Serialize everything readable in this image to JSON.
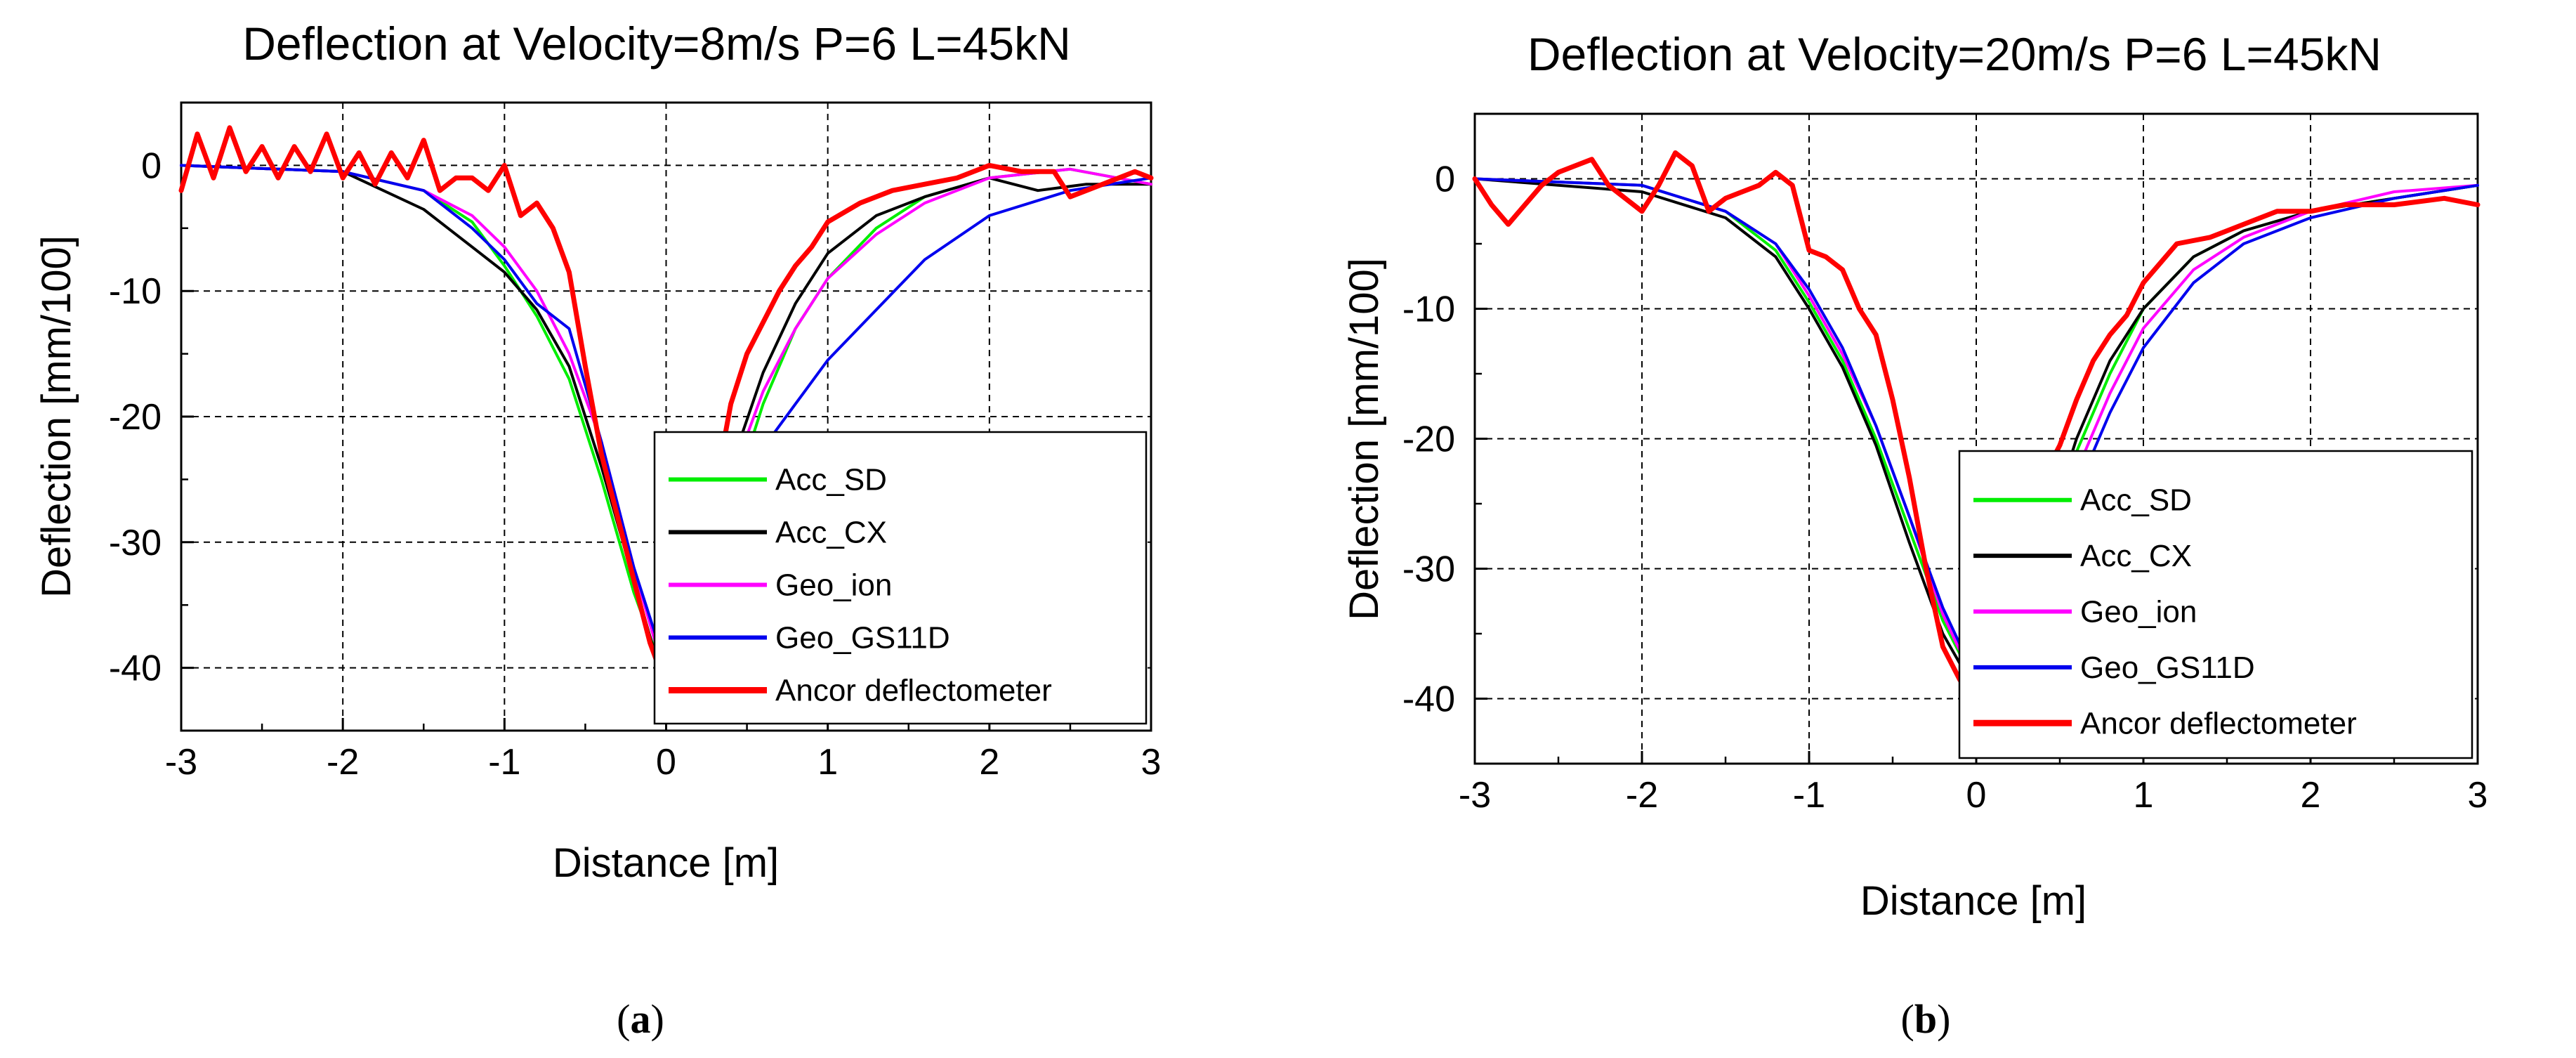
{
  "panels": [
    {
      "label_open": "(",
      "label_letter": "a",
      "label_close": ")"
    },
    {
      "label_open": "(",
      "label_letter": "b",
      "label_close": ")"
    }
  ],
  "chart_data": [
    {
      "type": "line",
      "title": "Deflection at Velocity=8m/s P=6 L=45kN",
      "xlabel": "Distance [m]",
      "ylabel": "Deflection [mm/100]",
      "xlim": [
        -3,
        3
      ],
      "ylim": [
        -45,
        5
      ],
      "xticks": [
        -3,
        -2,
        -1,
        0,
        1,
        2,
        3
      ],
      "yticks": [
        0,
        -10,
        -20,
        -30,
        -40
      ],
      "grid": true,
      "legend_position": "lower-right",
      "series": [
        {
          "name": "Acc_SD",
          "color": "#00ee00",
          "x": [
            -3,
            -2,
            -1.5,
            -1.2,
            -1,
            -0.8,
            -0.6,
            -0.4,
            -0.2,
            0,
            0.2,
            0.4,
            0.6,
            0.8,
            1,
            1.3,
            1.6,
            2,
            2.5,
            3
          ],
          "y": [
            0,
            -0.5,
            -2,
            -4.5,
            -8,
            -12,
            -17,
            -25,
            -34,
            -41,
            -36,
            -27,
            -19,
            -13,
            -9,
            -5,
            -2.5,
            -1,
            -0.3,
            -1.5
          ]
        },
        {
          "name": "Acc_CX",
          "color": "#000000",
          "x": [
            -3,
            -2,
            -1.5,
            -1.2,
            -1,
            -0.8,
            -0.6,
            -0.4,
            -0.2,
            0,
            0.2,
            0.4,
            0.6,
            0.8,
            1,
            1.3,
            1.6,
            2,
            2.3,
            2.6,
            3
          ],
          "y": [
            0,
            -0.5,
            -3.5,
            -6.5,
            -8.5,
            -11.5,
            -16,
            -24,
            -33,
            -42,
            -35,
            -24,
            -16.5,
            -11,
            -7,
            -4,
            -2.5,
            -1,
            -2,
            -1.5,
            -1.5
          ]
        },
        {
          "name": "Geo_ion",
          "color": "#ff00ff",
          "x": [
            -3,
            -2,
            -1.5,
            -1.2,
            -1,
            -0.8,
            -0.6,
            -0.4,
            -0.2,
            0,
            0.2,
            0.4,
            0.6,
            0.8,
            1,
            1.3,
            1.6,
            2,
            2.5,
            3
          ],
          "y": [
            0,
            -0.5,
            -2,
            -4,
            -6.5,
            -10,
            -15,
            -22,
            -32,
            -41,
            -34,
            -25,
            -18,
            -13,
            -9,
            -5.5,
            -3,
            -1,
            -0.3,
            -1.5
          ]
        },
        {
          "name": "Geo_GS11D",
          "color": "#0000ee",
          "x": [
            -3,
            -2,
            -1.5,
            -1.2,
            -1,
            -0.8,
            -0.6,
            -0.4,
            -0.2,
            0,
            0.2,
            0.4,
            0.6,
            0.8,
            1,
            1.3,
            1.6,
            2,
            2.5,
            3
          ],
          "y": [
            0,
            -0.5,
            -2,
            -5,
            -7.5,
            -11,
            -13,
            -22,
            -32,
            -40,
            -36,
            -28,
            -22.5,
            -19,
            -15.5,
            -11.5,
            -7.5,
            -4,
            -2,
            -1
          ]
        },
        {
          "name": "Ancor deflectometer",
          "color": "#ff0000",
          "x": [
            -3,
            -2.9,
            -2.8,
            -2.7,
            -2.6,
            -2.5,
            -2.4,
            -2.3,
            -2.2,
            -2.1,
            -2,
            -1.9,
            -1.8,
            -1.7,
            -1.6,
            -1.5,
            -1.4,
            -1.3,
            -1.2,
            -1.1,
            -1,
            -0.9,
            -0.8,
            -0.7,
            -0.6,
            -0.5,
            -0.4,
            -0.3,
            -0.2,
            -0.1,
            0,
            0.1,
            0.2,
            0.3,
            0.4,
            0.5,
            0.6,
            0.7,
            0.8,
            0.9,
            1,
            1.2,
            1.4,
            1.6,
            1.8,
            2,
            2.2,
            2.4,
            2.5,
            2.6,
            2.7,
            2.8,
            2.9,
            3
          ],
          "y": [
            -2,
            2.5,
            -1,
            3,
            -0.5,
            1.5,
            -1,
            1.5,
            -0.5,
            2.5,
            -1,
            1,
            -1.5,
            1,
            -1,
            2,
            -2,
            -1,
            -1,
            -2,
            0,
            -4,
            -3,
            -5,
            -8.5,
            -16,
            -23,
            -28,
            -33,
            -38,
            -41.5,
            -38,
            -33,
            -26,
            -19,
            -15,
            -12.5,
            -10,
            -8,
            -6.5,
            -4.5,
            -3,
            -2,
            -1.5,
            -1,
            0,
            -0.5,
            -0.5,
            -2.5,
            -2,
            -1.5,
            -1,
            -0.5,
            -1
          ]
        }
      ]
    },
    {
      "type": "line",
      "title": "Deflection at Velocity=20m/s P=6 L=45kN",
      "xlabel": "Distance [m]",
      "ylabel": "Deflection [mm/100]",
      "xlim": [
        -3,
        3
      ],
      "ylim": [
        -45,
        5
      ],
      "xticks": [
        -3,
        -2,
        -1,
        0,
        1,
        2,
        3
      ],
      "yticks": [
        0,
        -10,
        -20,
        -30,
        -40
      ],
      "grid": true,
      "legend_position": "lower-right",
      "series": [
        {
          "name": "Acc_SD",
          "color": "#00ee00",
          "x": [
            -3,
            -2,
            -1.5,
            -1.2,
            -1,
            -0.8,
            -0.6,
            -0.4,
            -0.2,
            0,
            0.2,
            0.4,
            0.6,
            0.8,
            1,
            1.3,
            1.6,
            2,
            2.5,
            3
          ],
          "y": [
            0,
            -0.5,
            -2.5,
            -5.5,
            -9.5,
            -14,
            -20,
            -27,
            -34,
            -39,
            -36,
            -29,
            -21,
            -15,
            -10,
            -6,
            -4,
            -2.5,
            -1.5,
            -0.5
          ]
        },
        {
          "name": "Acc_CX",
          "color": "#000000",
          "x": [
            -3,
            -2,
            -1.5,
            -1.2,
            -1,
            -0.8,
            -0.6,
            -0.4,
            -0.2,
            0,
            0.2,
            0.4,
            0.6,
            0.8,
            1,
            1.3,
            1.6,
            2,
            2.5,
            3
          ],
          "y": [
            0,
            -1,
            -3,
            -6,
            -10,
            -14.5,
            -20.5,
            -28,
            -35,
            -39.5,
            -36,
            -28,
            -20,
            -14,
            -10,
            -6,
            -4,
            -2.5,
            -1.5,
            -0.5
          ]
        },
        {
          "name": "Geo_ion",
          "color": "#ff00ff",
          "x": [
            -3,
            -2,
            -1.5,
            -1.2,
            -1,
            -0.8,
            -0.6,
            -0.4,
            -0.2,
            0,
            0.2,
            0.4,
            0.6,
            0.8,
            1,
            1.3,
            1.6,
            2,
            2.5,
            3
          ],
          "y": [
            0,
            -0.5,
            -2.5,
            -5,
            -9,
            -13.5,
            -19,
            -26,
            -33.5,
            -39,
            -36,
            -30,
            -22.5,
            -16.5,
            -11.5,
            -7,
            -4.5,
            -2.5,
            -1,
            -0.5
          ]
        },
        {
          "name": "Geo_GS11D",
          "color": "#0000ee",
          "x": [
            -3,
            -2,
            -1.5,
            -1.2,
            -1,
            -0.8,
            -0.6,
            -0.4,
            -0.2,
            0,
            0.2,
            0.4,
            0.6,
            0.8,
            1,
            1.3,
            1.6,
            2,
            2.5,
            3
          ],
          "y": [
            0,
            -0.5,
            -2.5,
            -5,
            -8.5,
            -13,
            -19,
            -26,
            -33,
            -38.5,
            -36.5,
            -31,
            -24,
            -18,
            -13,
            -8,
            -5,
            -3,
            -1.5,
            -0.5
          ]
        },
        {
          "name": "Ancor deflectometer",
          "color": "#ff0000",
          "x": [
            -3,
            -2.9,
            -2.8,
            -2.7,
            -2.6,
            -2.5,
            -2.4,
            -2.3,
            -2.2,
            -2.1,
            -2,
            -1.9,
            -1.8,
            -1.7,
            -1.6,
            -1.5,
            -1.4,
            -1.3,
            -1.2,
            -1.1,
            -1,
            -0.9,
            -0.8,
            -0.7,
            -0.6,
            -0.5,
            -0.4,
            -0.3,
            -0.2,
            -0.1,
            0,
            0.1,
            0.2,
            0.3,
            0.4,
            0.5,
            0.6,
            0.7,
            0.8,
            0.9,
            1,
            1.2,
            1.4,
            1.6,
            1.8,
            2,
            2.2,
            2.5,
            2.8,
            3
          ],
          "y": [
            0,
            -2,
            -3.5,
            -2,
            -0.5,
            0.5,
            1,
            1.5,
            -0.5,
            -1.5,
            -2.5,
            -0.5,
            2,
            1,
            -2.5,
            -1.5,
            -1,
            -0.5,
            0.5,
            -0.5,
            -5.5,
            -6,
            -7,
            -10,
            -12,
            -17,
            -23,
            -30,
            -36,
            -38.5,
            -40.5,
            -37.5,
            -33,
            -28,
            -23,
            -20.5,
            -17,
            -14,
            -12,
            -10.5,
            -8,
            -5,
            -4.5,
            -3.5,
            -2.5,
            -2.5,
            -2,
            -2,
            -1.5,
            -2
          ]
        }
      ]
    }
  ]
}
